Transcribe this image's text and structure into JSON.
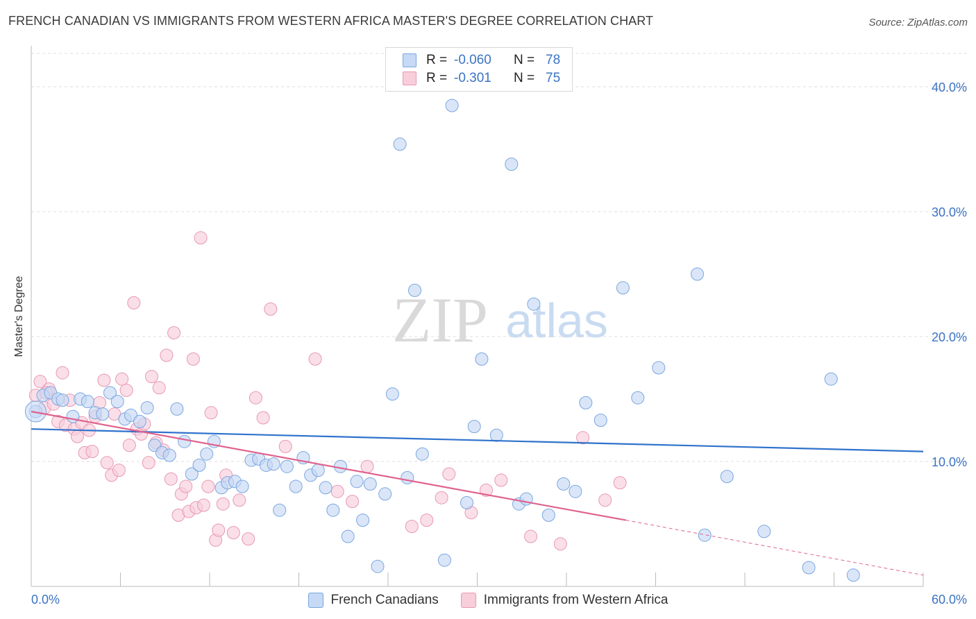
{
  "header": {
    "title": "FRENCH CANADIAN VS IMMIGRANTS FROM WESTERN AFRICA MASTER'S DEGREE CORRELATION CHART",
    "source": "Source: ZipAtlas.com"
  },
  "watermark": {
    "zip": "ZIP",
    "atlas": "atlas"
  },
  "legend_top": {
    "rows": [
      {
        "r_label": "R =",
        "r_value": "-0.060",
        "n_label": "N =",
        "n_value": "78"
      },
      {
        "r_label": "R =",
        "r_value": "-0.301",
        "n_label": "N =",
        "n_value": "75"
      }
    ]
  },
  "colors": {
    "blue_fill": "#c6d9f5",
    "blue_stroke": "#7aa6e0",
    "blue_line": "#2f72cc",
    "pink_fill": "#f8cedb",
    "pink_stroke": "#e898b3",
    "pink_line": "#e0628e",
    "axis_text": "#3b73c4",
    "grid": "#dcdcdc"
  },
  "chart_data": {
    "type": "scatter",
    "title": "FRENCH CANADIAN VS IMMIGRANTS FROM WESTERN AFRICA MASTER'S DEGREE CORRELATION CHART",
    "xlabel": "",
    "ylabel": "Master's Degree",
    "xlim": [
      0,
      60
    ],
    "ylim": [
      0,
      40
    ],
    "x_ticks": [
      0,
      6,
      12,
      18,
      24,
      30,
      36,
      42,
      48,
      54,
      60
    ],
    "x_tick_labels": [
      {
        "value": 0,
        "label": "0.0%"
      },
      {
        "value": 60,
        "label": "60.0%"
      }
    ],
    "y_ticks": [
      {
        "value": 10,
        "label": "10.0%"
      },
      {
        "value": 20,
        "label": "20.0%"
      },
      {
        "value": 30,
        "label": "30.0%"
      },
      {
        "value": 40,
        "label": "40.0%"
      }
    ],
    "grid": true,
    "legend_position": "bottom-center",
    "series": [
      {
        "name": "French Canadians",
        "r": -0.06,
        "n": 78,
        "trend": {
          "x": [
            0,
            60
          ],
          "y": [
            12.6,
            10.8
          ]
        },
        "points": [
          [
            0.3,
            14.0
          ],
          [
            0.8,
            15.3
          ],
          [
            1.3,
            15.5
          ],
          [
            1.8,
            15.0
          ],
          [
            2.1,
            14.9
          ],
          [
            2.8,
            13.6
          ],
          [
            3.3,
            15.0
          ],
          [
            3.8,
            14.8
          ],
          [
            4.3,
            13.9
          ],
          [
            4.8,
            13.8
          ],
          [
            5.3,
            15.5
          ],
          [
            5.8,
            14.8
          ],
          [
            6.3,
            13.4
          ],
          [
            6.7,
            13.7
          ],
          [
            7.3,
            13.2
          ],
          [
            7.8,
            14.3
          ],
          [
            8.3,
            11.3
          ],
          [
            8.8,
            10.7
          ],
          [
            9.3,
            10.5
          ],
          [
            9.8,
            14.2
          ],
          [
            10.3,
            11.6
          ],
          [
            10.8,
            9.0
          ],
          [
            11.3,
            9.7
          ],
          [
            11.8,
            10.6
          ],
          [
            12.3,
            11.6
          ],
          [
            12.8,
            7.9
          ],
          [
            13.2,
            8.3
          ],
          [
            13.7,
            8.4
          ],
          [
            14.2,
            8.0
          ],
          [
            14.8,
            10.1
          ],
          [
            15.3,
            10.2
          ],
          [
            15.8,
            9.7
          ],
          [
            16.3,
            9.8
          ],
          [
            16.7,
            6.1
          ],
          [
            17.2,
            9.6
          ],
          [
            17.8,
            8.0
          ],
          [
            18.3,
            10.3
          ],
          [
            18.8,
            8.9
          ],
          [
            19.3,
            9.3
          ],
          [
            19.8,
            7.9
          ],
          [
            20.3,
            6.1
          ],
          [
            20.8,
            9.6
          ],
          [
            21.3,
            4.0
          ],
          [
            21.9,
            8.4
          ],
          [
            22.3,
            5.3
          ],
          [
            22.8,
            8.2
          ],
          [
            23.3,
            1.6
          ],
          [
            23.8,
            7.4
          ],
          [
            24.3,
            15.4
          ],
          [
            24.8,
            35.4
          ],
          [
            25.3,
            8.7
          ],
          [
            25.8,
            23.7
          ],
          [
            26.3,
            10.6
          ],
          [
            27.8,
            2.1
          ],
          [
            28.3,
            38.5
          ],
          [
            29.3,
            6.7
          ],
          [
            29.8,
            12.8
          ],
          [
            30.3,
            18.2
          ],
          [
            31.3,
            12.1
          ],
          [
            32.3,
            33.8
          ],
          [
            32.8,
            6.6
          ],
          [
            33.3,
            7.0
          ],
          [
            33.8,
            22.6
          ],
          [
            34.8,
            5.7
          ],
          [
            35.8,
            8.2
          ],
          [
            36.6,
            7.6
          ],
          [
            37.3,
            14.7
          ],
          [
            38.3,
            13.3
          ],
          [
            39.8,
            23.9
          ],
          [
            40.8,
            15.1
          ],
          [
            42.2,
            17.5
          ],
          [
            44.8,
            25.0
          ],
          [
            45.3,
            4.1
          ],
          [
            46.8,
            8.8
          ],
          [
            49.3,
            4.4
          ],
          [
            52.3,
            1.5
          ],
          [
            53.8,
            16.6
          ],
          [
            55.3,
            0.9
          ]
        ]
      },
      {
        "name": "Immigrants from Western Africa",
        "r": -0.301,
        "n": 75,
        "trend": {
          "x": [
            0,
            40
          ],
          "y": [
            14.0,
            5.3
          ]
        },
        "trend_extension": {
          "x": [
            40,
            60
          ],
          "y": [
            5.3,
            0.9
          ]
        },
        "points": [
          [
            0.3,
            15.3
          ],
          [
            0.6,
            16.4
          ],
          [
            0.9,
            14.3
          ],
          [
            1.2,
            15.8
          ],
          [
            1.5,
            14.6
          ],
          [
            1.8,
            13.2
          ],
          [
            2.1,
            17.1
          ],
          [
            2.3,
            12.9
          ],
          [
            2.6,
            14.9
          ],
          [
            2.9,
            12.6
          ],
          [
            3.1,
            12.0
          ],
          [
            3.4,
            13.1
          ],
          [
            3.6,
            10.7
          ],
          [
            3.9,
            12.5
          ],
          [
            4.1,
            10.8
          ],
          [
            4.3,
            13.6
          ],
          [
            4.6,
            14.7
          ],
          [
            4.9,
            16.5
          ],
          [
            5.1,
            9.9
          ],
          [
            5.4,
            8.9
          ],
          [
            5.6,
            13.8
          ],
          [
            5.9,
            9.3
          ],
          [
            6.1,
            16.6
          ],
          [
            6.4,
            15.7
          ],
          [
            6.6,
            11.3
          ],
          [
            6.9,
            22.7
          ],
          [
            7.1,
            12.6
          ],
          [
            7.4,
            12.2
          ],
          [
            7.6,
            13.0
          ],
          [
            7.9,
            9.9
          ],
          [
            8.1,
            16.8
          ],
          [
            8.4,
            11.5
          ],
          [
            8.6,
            15.9
          ],
          [
            8.9,
            10.9
          ],
          [
            9.1,
            18.5
          ],
          [
            9.4,
            8.6
          ],
          [
            9.6,
            20.3
          ],
          [
            9.9,
            5.7
          ],
          [
            10.1,
            7.4
          ],
          [
            10.4,
            8.0
          ],
          [
            10.6,
            6.0
          ],
          [
            10.9,
            18.2
          ],
          [
            11.1,
            6.3
          ],
          [
            11.4,
            27.9
          ],
          [
            11.6,
            6.5
          ],
          [
            11.9,
            8.0
          ],
          [
            12.1,
            13.9
          ],
          [
            12.4,
            3.7
          ],
          [
            12.6,
            4.5
          ],
          [
            12.9,
            6.6
          ],
          [
            13.1,
            8.9
          ],
          [
            13.6,
            4.3
          ],
          [
            14.0,
            6.9
          ],
          [
            14.6,
            3.8
          ],
          [
            15.1,
            15.1
          ],
          [
            15.6,
            13.5
          ],
          [
            16.1,
            22.2
          ],
          [
            17.1,
            11.2
          ],
          [
            19.1,
            18.2
          ],
          [
            20.6,
            7.6
          ],
          [
            21.6,
            6.8
          ],
          [
            22.6,
            9.6
          ],
          [
            25.6,
            4.8
          ],
          [
            26.6,
            5.3
          ],
          [
            27.6,
            7.1
          ],
          [
            28.1,
            9.0
          ],
          [
            29.6,
            5.9
          ],
          [
            30.6,
            7.7
          ],
          [
            31.6,
            8.5
          ],
          [
            33.6,
            4.0
          ],
          [
            35.6,
            3.4
          ],
          [
            37.1,
            11.9
          ],
          [
            38.6,
            6.9
          ],
          [
            39.6,
            8.3
          ],
          [
            1.0,
            15.5
          ]
        ]
      }
    ]
  }
}
